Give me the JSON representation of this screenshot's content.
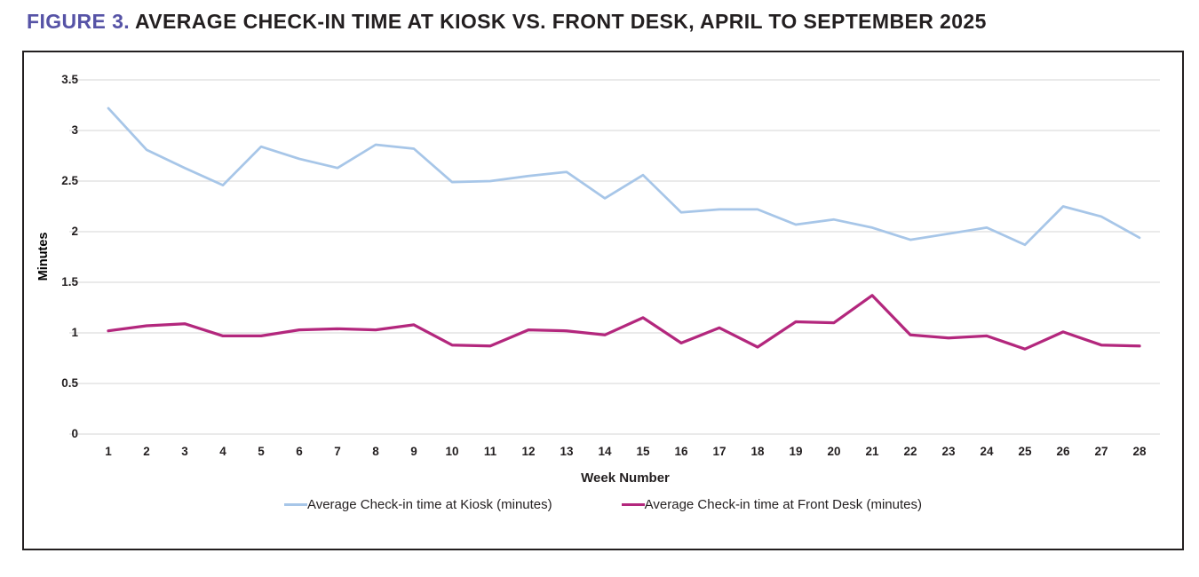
{
  "header": {
    "figure_label": "FIGURE 3.",
    "title": "AVERAGE CHECK-IN TIME AT KIOSK VS. FRONT DESK, APRIL TO SEPTEMBER 2025"
  },
  "colors": {
    "figure_label_purple": "#5653a6",
    "title_text": "#231f20",
    "kiosk_line": "#a7c6e8",
    "front_desk_line": "#b3277d",
    "gridline": "#e3e3e3",
    "card_border": "#231f20"
  },
  "chart_data": {
    "type": "line",
    "title": "FIGURE 3. AVERAGE CHECK-IN TIME AT KIOSK VS. FRONT DESK, APRIL TO SEPTEMBER 2025",
    "xlabel": "Week Number",
    "ylabel": "Minutes",
    "ylim": [
      0,
      3.5
    ],
    "grid": "horizontal",
    "legend_position": "bottom",
    "yticks": [
      {
        "value": 0,
        "label": "0"
      },
      {
        "value": 0.5,
        "label": "0.5"
      },
      {
        "value": 1,
        "label": "1"
      },
      {
        "value": 1.5,
        "label": "1.5"
      },
      {
        "value": 2,
        "label": "2"
      },
      {
        "value": 2.5,
        "label": "2.5"
      },
      {
        "value": 3,
        "label": "3"
      },
      {
        "value": 3.5,
        "label": "3.5"
      }
    ],
    "categories": [
      "1",
      "2",
      "3",
      "4",
      "5",
      "6",
      "7",
      "8",
      "9",
      "10",
      "11",
      "12",
      "13",
      "14",
      "15",
      "16",
      "17",
      "18",
      "19",
      "20",
      "21",
      "22",
      "23",
      "24",
      "25",
      "26",
      "27",
      "28"
    ],
    "series": [
      {
        "name": "Average Check-in time at Kiosk (minutes)",
        "color": "#a7c6e8",
        "stroke_width": 2.75,
        "values": [
          3.22,
          2.81,
          2.63,
          2.46,
          2.84,
          2.72,
          2.63,
          2.86,
          2.82,
          2.49,
          2.5,
          2.55,
          2.59,
          2.33,
          2.56,
          2.19,
          2.22,
          2.22,
          2.07,
          2.12,
          2.04,
          1.92,
          1.98,
          2.04,
          1.87,
          2.25,
          2.15,
          1.94
        ]
      },
      {
        "name": "Average Check-in time at Front Desk (minutes)",
        "color": "#b3277d",
        "stroke_width": 3.25,
        "values": [
          1.02,
          1.07,
          1.09,
          0.97,
          0.97,
          1.03,
          1.04,
          1.03,
          1.08,
          0.88,
          0.87,
          1.03,
          1.02,
          0.98,
          1.15,
          0.9,
          1.05,
          0.86,
          1.11,
          1.1,
          1.37,
          0.98,
          0.95,
          0.97,
          0.84,
          1.01,
          0.88,
          0.87
        ]
      }
    ]
  }
}
